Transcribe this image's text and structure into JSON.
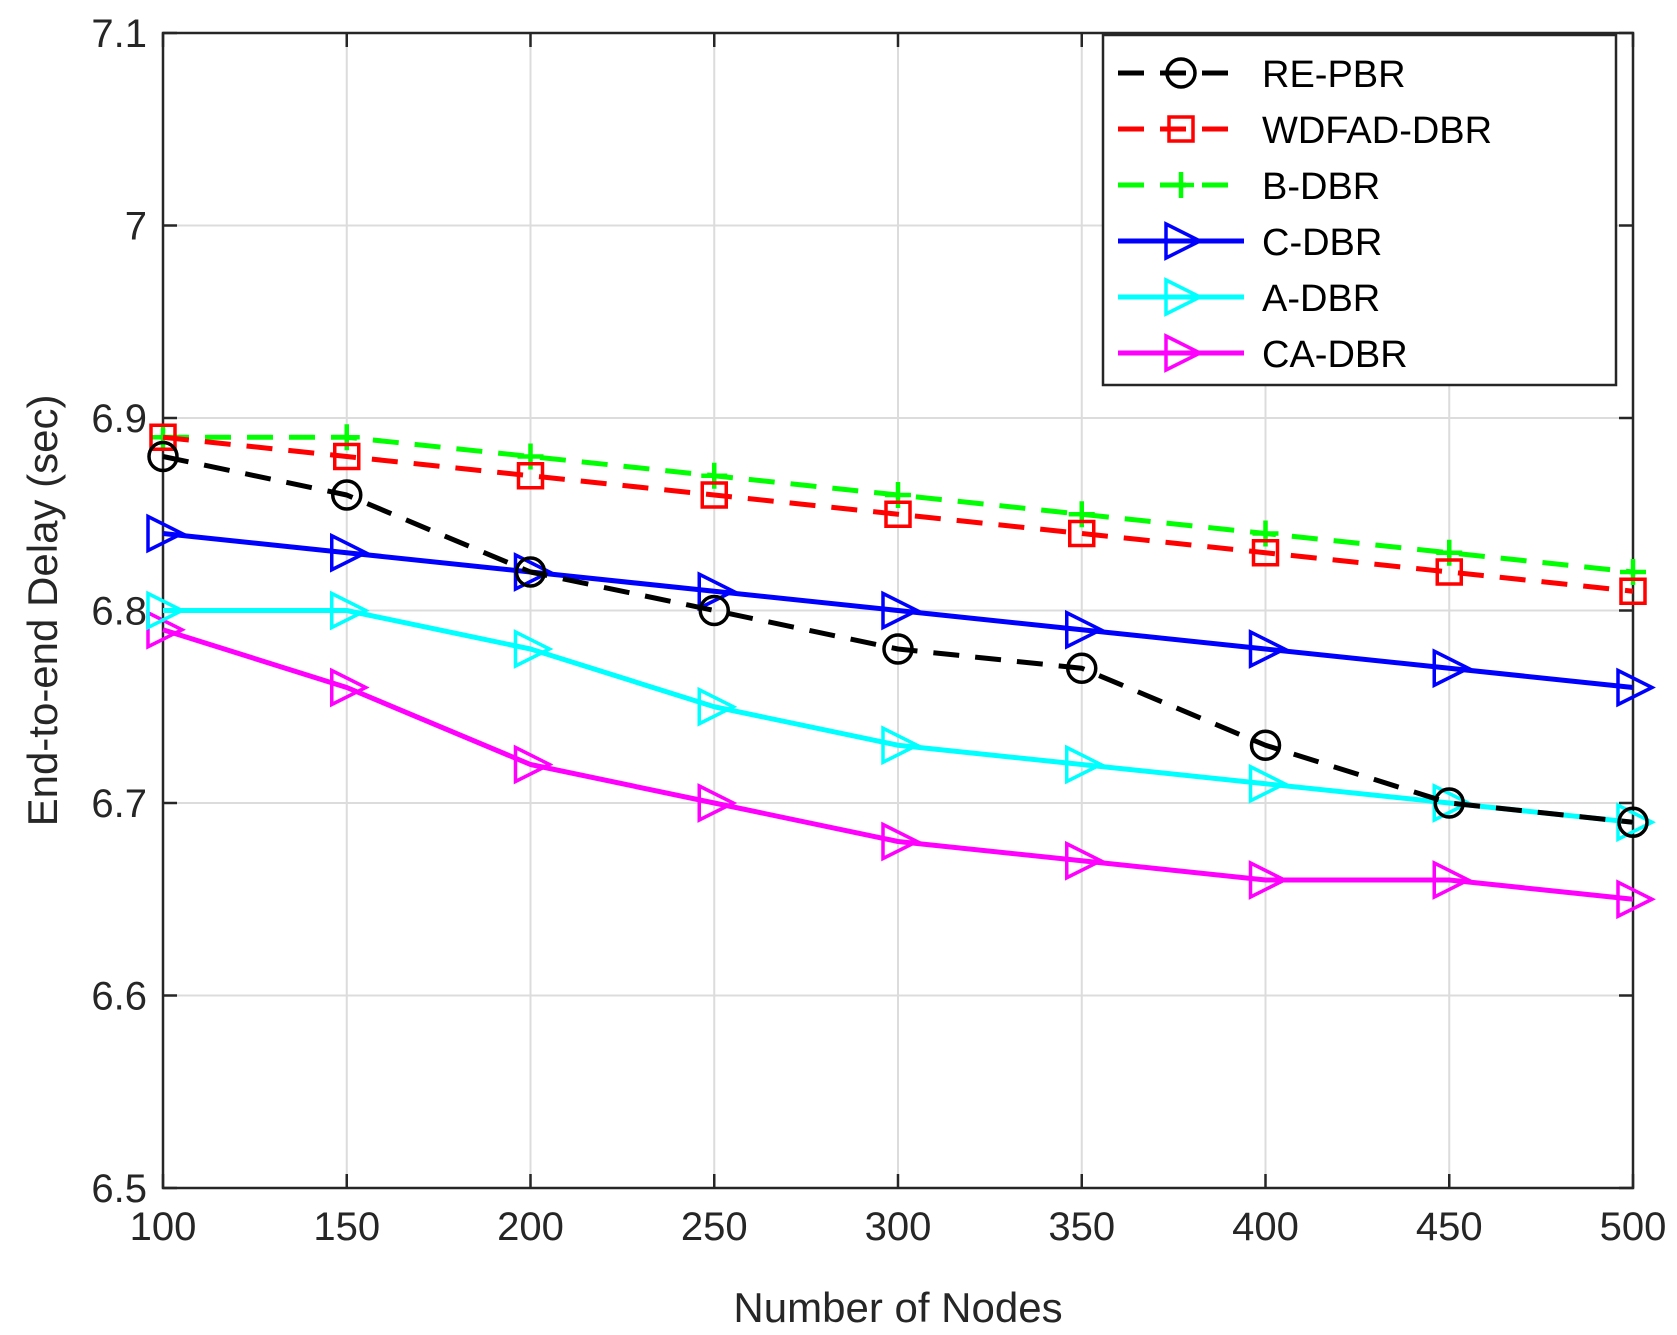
{
  "chart_data": {
    "type": "line",
    "title": "",
    "xlabel": "Number of Nodes",
    "ylabel": "End-to-end Delay (sec)",
    "x": [
      100,
      150,
      200,
      250,
      300,
      350,
      400,
      450,
      500
    ],
    "xlim": [
      100,
      500
    ],
    "ylim": [
      6.5,
      7.1
    ],
    "xticks": [
      "100",
      "150",
      "200",
      "250",
      "300",
      "350",
      "400",
      "450",
      "500"
    ],
    "yticks": [
      "6.5",
      "6.6",
      "6.7",
      "6.8",
      "6.9",
      "7",
      "7.1"
    ],
    "grid": true,
    "legend_location": "top-right",
    "series": [
      {
        "name": "RE-PBR",
        "color": "#000000",
        "style": "dashed",
        "marker": "circle",
        "values": [
          6.88,
          6.86,
          6.82,
          6.8,
          6.78,
          6.77,
          6.73,
          6.7,
          6.69
        ]
      },
      {
        "name": "WDFAD-DBR",
        "color": "#ff0000",
        "style": "dashed",
        "marker": "square",
        "values": [
          6.89,
          6.88,
          6.87,
          6.86,
          6.85,
          6.84,
          6.83,
          6.82,
          6.81
        ]
      },
      {
        "name": "B-DBR",
        "color": "#00ff00",
        "style": "dashed",
        "marker": "plus",
        "values": [
          6.89,
          6.89,
          6.88,
          6.87,
          6.86,
          6.85,
          6.84,
          6.83,
          6.82
        ]
      },
      {
        "name": "C-DBR",
        "color": "#0000ff",
        "style": "solid",
        "marker": "triangle-right",
        "values": [
          6.84,
          6.83,
          6.82,
          6.81,
          6.8,
          6.79,
          6.78,
          6.77,
          6.76
        ]
      },
      {
        "name": "A-DBR",
        "color": "#00ffff",
        "style": "solid",
        "marker": "triangle-right",
        "values": [
          6.8,
          6.8,
          6.78,
          6.75,
          6.73,
          6.72,
          6.71,
          6.7,
          6.69
        ]
      },
      {
        "name": "CA-DBR",
        "color": "#ff00ff",
        "style": "solid",
        "marker": "triangle-right",
        "values": [
          6.79,
          6.76,
          6.72,
          6.7,
          6.68,
          6.67,
          6.66,
          6.66,
          6.65
        ]
      }
    ]
  }
}
